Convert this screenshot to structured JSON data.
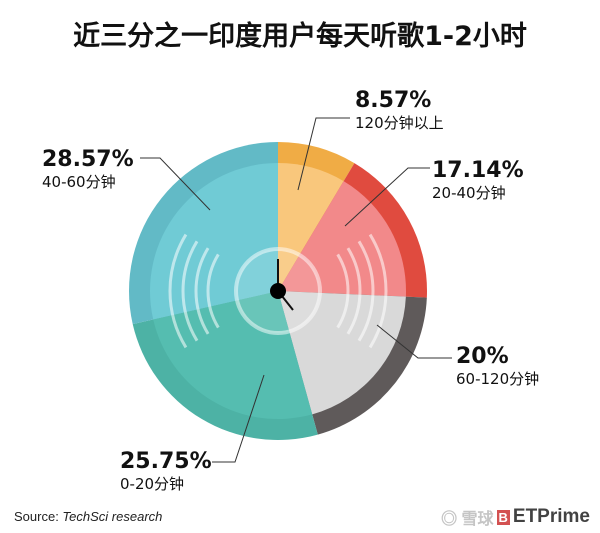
{
  "chart_data": {
    "type": "pie",
    "title": "近三分之一印度用户每天听歌1-2小时",
    "slices": [
      {
        "label": "120分钟以上",
        "value": 8.57,
        "display": "8.57%",
        "color": "#f9c77c",
        "ring_color": "#f0ac45"
      },
      {
        "label": "20-40分钟",
        "value": 17.14,
        "display": "17.14%",
        "color": "#f2898a",
        "ring_color": "#e04b3f"
      },
      {
        "label": "60-120分钟",
        "value": 20,
        "display": "20%",
        "color": "#d9d9d9",
        "ring_color": "#5f5a5a"
      },
      {
        "label": "0-20分钟",
        "value": 25.75,
        "display": "25.75%",
        "color": "#55bdb0",
        "ring_color": "#4db2a5"
      },
      {
        "label": "40-60分钟",
        "value": 28.57,
        "display": "28.57%",
        "color": "#70cbd5",
        "ring_color": "#62bac6"
      }
    ],
    "start_angle": "12 o'clock",
    "direction": "clockwise",
    "legend": "none (direct labels)"
  },
  "source": {
    "prefix": "Source: ",
    "name": "TechSci research"
  },
  "watermark": {
    "text": "雪球 ETPrime"
  }
}
